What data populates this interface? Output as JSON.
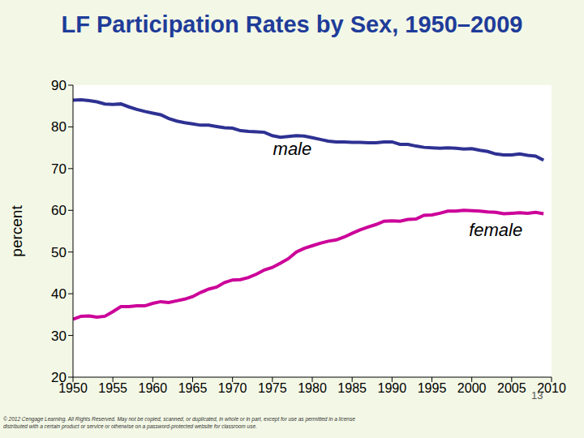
{
  "chart_data": {
    "type": "line",
    "title": "LF Participation Rates by Sex, 1950–2009",
    "y_label": "percent",
    "xlim": [
      1950,
      2010
    ],
    "xticks": [
      1950,
      1955,
      1960,
      1965,
      1970,
      1975,
      1980,
      1985,
      1990,
      1995,
      2000,
      2005,
      2010
    ],
    "ylim": [
      20,
      90
    ],
    "yticks": [
      20,
      30,
      40,
      50,
      60,
      70,
      80,
      90
    ],
    "grid": false,
    "x": [
      1950,
      1951,
      1952,
      1953,
      1954,
      1955,
      1956,
      1957,
      1958,
      1959,
      1960,
      1961,
      1962,
      1963,
      1964,
      1965,
      1966,
      1967,
      1968,
      1969,
      1970,
      1971,
      1972,
      1973,
      1974,
      1975,
      1976,
      1977,
      1978,
      1979,
      1980,
      1981,
      1982,
      1983,
      1984,
      1985,
      1986,
      1987,
      1988,
      1989,
      1990,
      1991,
      1992,
      1993,
      1994,
      1995,
      1996,
      1997,
      1998,
      1999,
      2000,
      2001,
      2002,
      2003,
      2004,
      2005,
      2006,
      2007,
      2008,
      2009
    ],
    "series": [
      {
        "name": "male",
        "color": "#2e3192",
        "values": [
          86.4,
          86.5,
          86.3,
          86.0,
          85.5,
          85.4,
          85.5,
          84.8,
          84.2,
          83.7,
          83.3,
          82.9,
          82.0,
          81.4,
          81.0,
          80.7,
          80.4,
          80.4,
          80.1,
          79.8,
          79.7,
          79.1,
          78.9,
          78.8,
          78.7,
          77.9,
          77.5,
          77.7,
          77.9,
          77.8,
          77.4,
          77.0,
          76.6,
          76.4,
          76.4,
          76.3,
          76.3,
          76.2,
          76.2,
          76.4,
          76.4,
          75.8,
          75.8,
          75.4,
          75.1,
          75.0,
          74.9,
          75.0,
          74.9,
          74.7,
          74.8,
          74.4,
          74.1,
          73.5,
          73.3,
          73.3,
          73.5,
          73.2,
          73.0,
          72.0
        ]
      },
      {
        "name": "female",
        "color": "#cc0099",
        "values": [
          33.9,
          34.6,
          34.7,
          34.4,
          34.6,
          35.7,
          36.9,
          36.9,
          37.1,
          37.1,
          37.7,
          38.1,
          37.9,
          38.3,
          38.7,
          39.3,
          40.3,
          41.1,
          41.6,
          42.7,
          43.3,
          43.4,
          43.9,
          44.7,
          45.7,
          46.3,
          47.3,
          48.4,
          50.0,
          50.9,
          51.5,
          52.1,
          52.6,
          52.9,
          53.6,
          54.5,
          55.3,
          56.0,
          56.6,
          57.4,
          57.5,
          57.4,
          57.8,
          57.9,
          58.8,
          58.9,
          59.3,
          59.8,
          59.8,
          60.0,
          59.9,
          59.8,
          59.6,
          59.5,
          59.2,
          59.3,
          59.4,
          59.3,
          59.5,
          59.2
        ]
      }
    ],
    "annotations": [
      {
        "text": "male",
        "x": 1977.5,
        "y": 74.5
      },
      {
        "text": "female",
        "x": 2003,
        "y": 55
      }
    ],
    "footnote": "© 2012 Cengage Learning. All Rights Reserved. May not be copied, scanned, or duplicated, in whole or in part, except for use as permitted in a license distributed with a certain product or service or otherwise on a password-protected website for classroom use.",
    "page_number": "13"
  }
}
